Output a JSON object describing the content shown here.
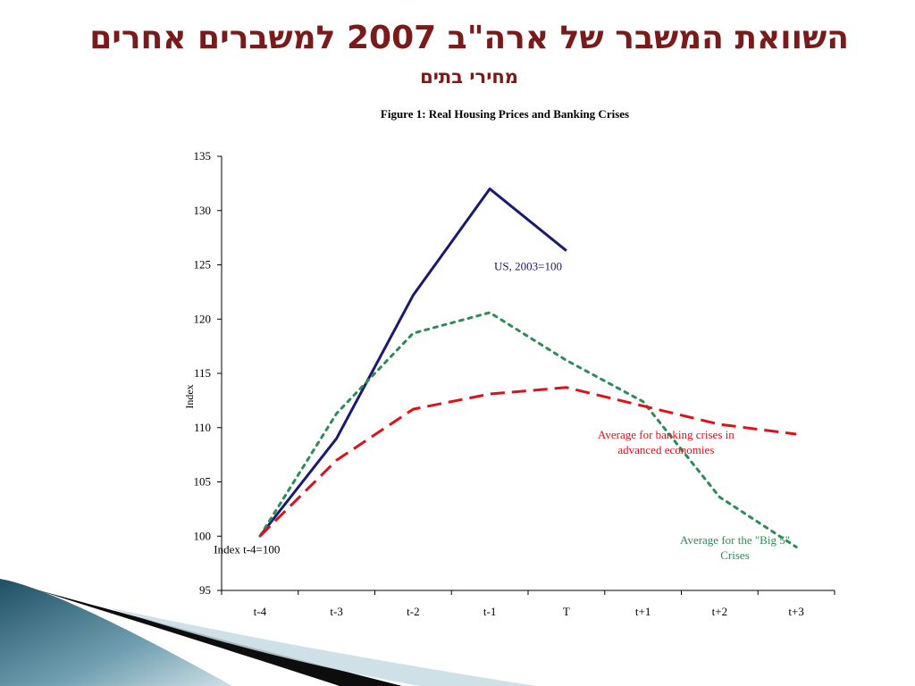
{
  "slide": {
    "title": "השוואת המשבר של ארה\"ב 2007 למשברים אחרים",
    "subtitle": "מחירי בתים"
  },
  "chart_data": {
    "type": "line",
    "title": "Figure 1:  Real Housing Prices and Banking Crises",
    "ylabel": "Index",
    "xlabel": "",
    "ylim": [
      95,
      135
    ],
    "yticks": [
      95,
      100,
      105,
      110,
      115,
      120,
      125,
      130,
      135
    ],
    "categories": [
      "t-4",
      "t-3",
      "t-2",
      "t-1",
      "T",
      "t+1",
      "t+2",
      "t+3"
    ],
    "grid": false,
    "series": [
      {
        "name": "US, 2003=100",
        "color": "#1a1a6e",
        "style": "solid",
        "values": [
          100,
          109,
          122.2,
          132,
          126.3,
          null,
          null,
          null
        ]
      },
      {
        "name": "Average for the \"Big 5\" Crises",
        "color": "#2e8b57",
        "style": "dotted",
        "values": [
          100,
          111.3,
          118.7,
          120.6,
          116.2,
          112.4,
          103.6,
          99
        ]
      },
      {
        "name": "Average for banking crises in advanced economies",
        "color": "#e0101a",
        "style": "dashed",
        "values": [
          100,
          107,
          111.7,
          113.1,
          113.7,
          112,
          110.3,
          109.4
        ]
      }
    ],
    "annotations": [
      {
        "id": "us",
        "lines": [
          "US, 2003=100"
        ],
        "color": "#1a1a6e",
        "x": 4,
        "y": 124.5
      },
      {
        "id": "adv",
        "lines": [
          "Average for banking crises in",
          "advanced economies"
        ],
        "color": "#e0101a",
        "x": 5.8,
        "y": 109
      },
      {
        "id": "big5",
        "lines": [
          "Average for the \"Big 5\"",
          "Crises"
        ],
        "color": "#2e8b57",
        "x": 6.7,
        "y": 99.3
      },
      {
        "id": "index",
        "lines": [
          "Index t-4=100"
        ],
        "color": "#000000",
        "x": 0.33,
        "y": 98.4
      }
    ]
  }
}
